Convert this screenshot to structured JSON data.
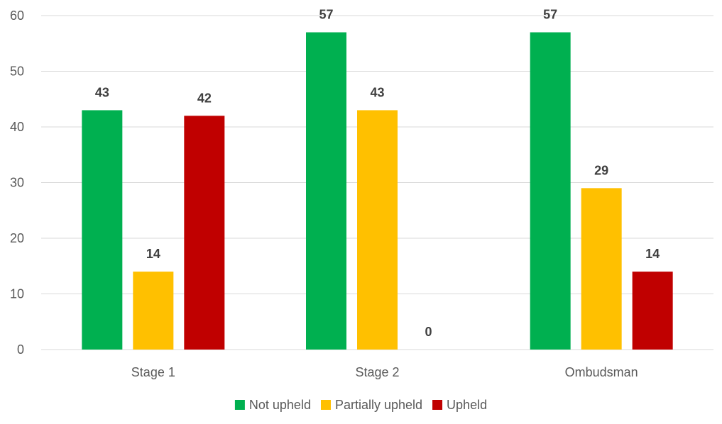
{
  "chart_data": {
    "type": "bar",
    "categories": [
      "Stage 1",
      "Stage 2",
      "Ombudsman"
    ],
    "series": [
      {
        "name": "Not upheld",
        "color": "#00b050",
        "values": [
          43,
          57,
          57
        ]
      },
      {
        "name": "Partially upheld",
        "color": "#ffc000",
        "values": [
          14,
          43,
          29
        ]
      },
      {
        "name": "Upheld",
        "color": "#c00000",
        "values": [
          42,
          0,
          14
        ]
      }
    ],
    "y_ticks": [
      0,
      10,
      20,
      30,
      40,
      50,
      60
    ],
    "ylim": [
      0,
      60
    ],
    "grid": true,
    "legend": "bottom",
    "data_labels": true
  }
}
